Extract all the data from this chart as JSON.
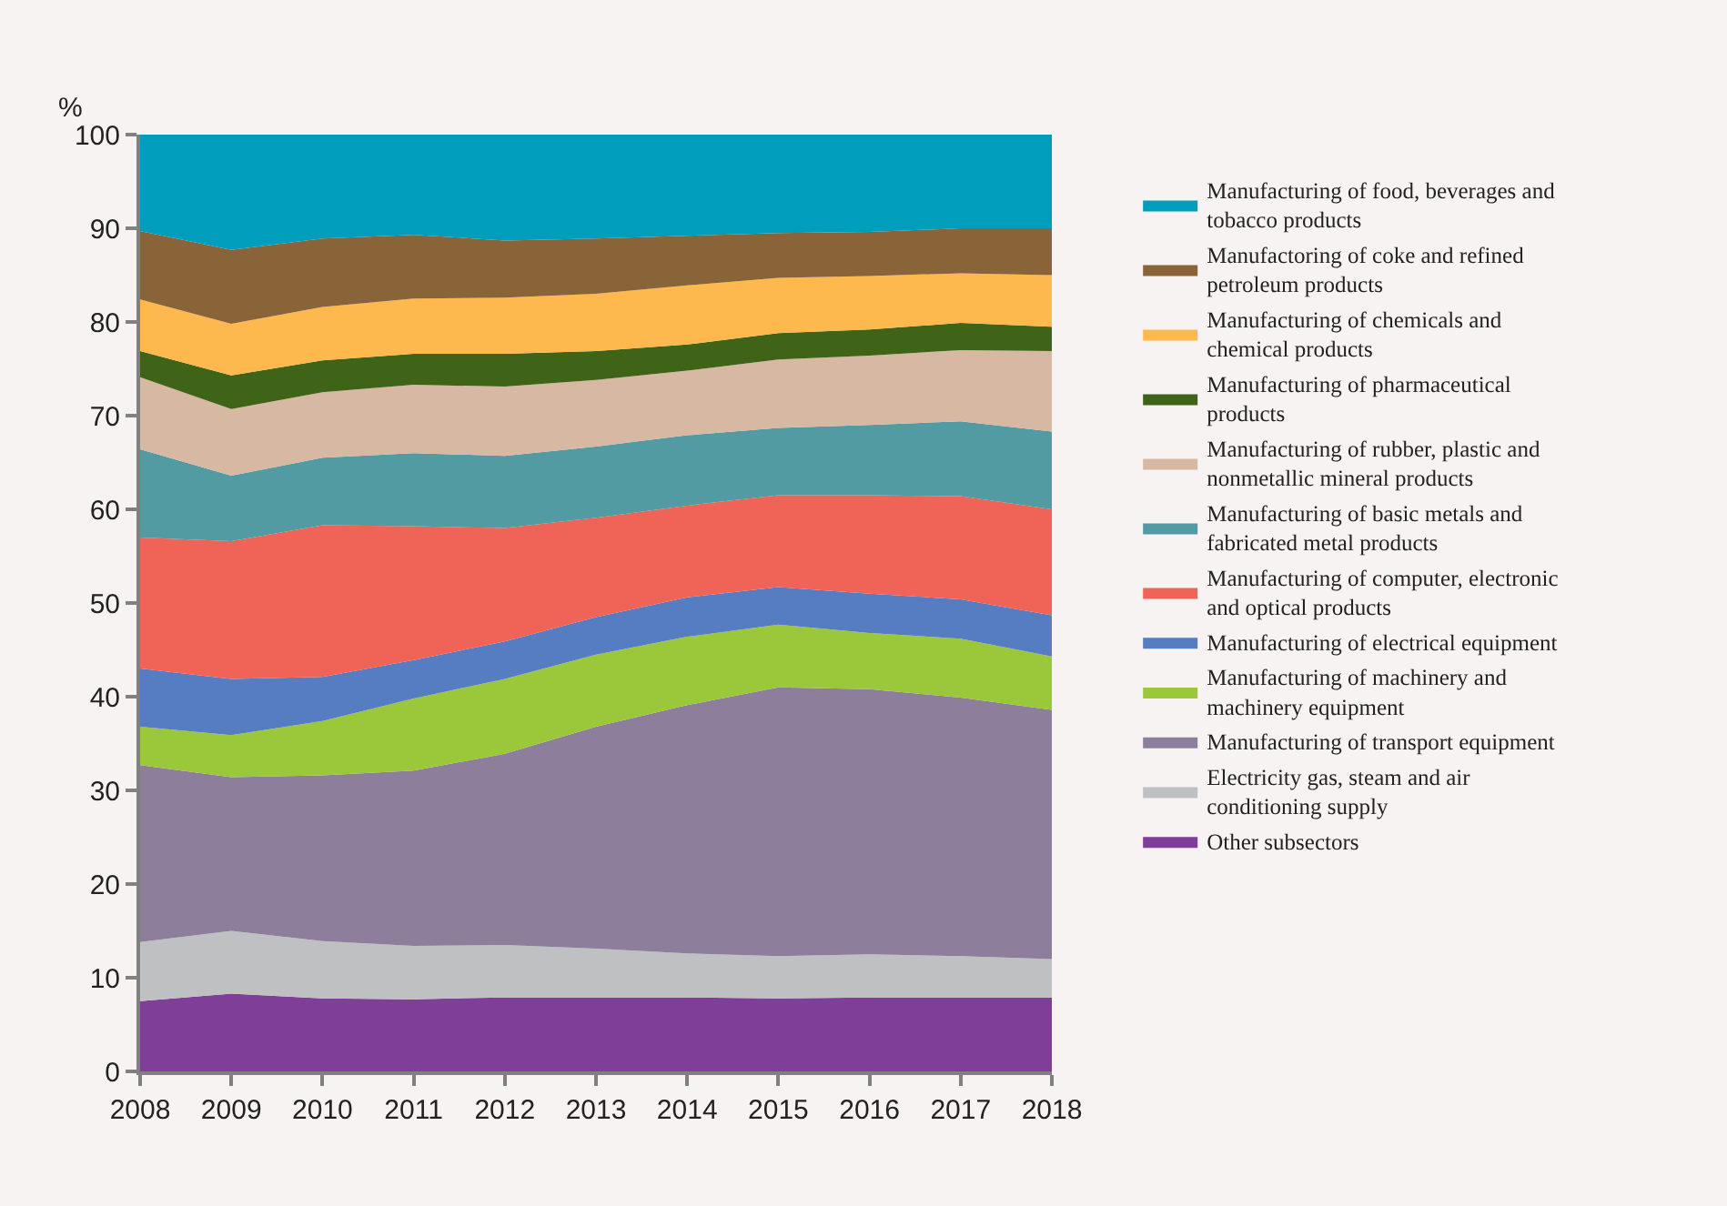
{
  "chart_data": {
    "type": "area",
    "stacked": true,
    "ylabel": "%",
    "legend": "right",
    "x": [
      2008,
      2009,
      2010,
      2011,
      2012,
      2013,
      2014,
      2015,
      2016,
      2017,
      2018
    ],
    "xlim": [
      2008,
      2018
    ],
    "xticks": [
      2008,
      2009,
      2010,
      2011,
      2012,
      2013,
      2014,
      2015,
      2016,
      2017,
      2018
    ],
    "ylim": [
      0,
      100
    ],
    "yticks": [
      0,
      10,
      20,
      30,
      40,
      50,
      60,
      70,
      80,
      90,
      100
    ],
    "series": [
      {
        "name": "Other subsectors",
        "color": "#7f3f98",
        "values": [
          7.5,
          8.3,
          7.8,
          7.7,
          7.9,
          7.9,
          7.9,
          7.8,
          7.9,
          7.9,
          7.9
        ]
      },
      {
        "name": "Electricity gas, steam and air conditioning supply",
        "color": "#bfc0c2",
        "values": [
          6.3,
          6.7,
          6.1,
          5.7,
          5.6,
          5.2,
          4.7,
          4.5,
          4.6,
          4.4,
          4.1
        ]
      },
      {
        "name": "Manufacturing of transport equipment",
        "color": "#8d7f9c",
        "values": [
          18.9,
          16.4,
          17.7,
          18.7,
          20.4,
          23.7,
          26.5,
          28.7,
          28.3,
          27.6,
          26.6
        ]
      },
      {
        "name": "Manufacturing of machinery and machinery equipment",
        "color": "#9bc73b",
        "values": [
          4.1,
          4.5,
          5.8,
          7.7,
          8.0,
          7.7,
          7.3,
          6.7,
          6.0,
          6.3,
          5.7
        ]
      },
      {
        "name": "Manufacturing of electrical equipment",
        "color": "#567dc1",
        "values": [
          6.2,
          6.0,
          4.7,
          4.1,
          4.0,
          4.0,
          4.2,
          4.0,
          4.2,
          4.2,
          4.4
        ]
      },
      {
        "name": "Manufacturing of computer, electronic and optical products",
        "color": "#f06357",
        "values": [
          14.0,
          14.7,
          16.2,
          14.3,
          12.1,
          10.6,
          9.8,
          9.8,
          10.5,
          11.0,
          11.3
        ]
      },
      {
        "name": "Manufacturing of basic metals and fabricated metal products",
        "color": "#529ba2",
        "values": [
          9.4,
          7.0,
          7.2,
          7.8,
          7.7,
          7.6,
          7.5,
          7.2,
          7.5,
          8.0,
          8.3
        ]
      },
      {
        "name": "Manufacturing of rubber, plastic and nonmetallic mineral products",
        "color": "#d6b8a3",
        "values": [
          7.7,
          7.1,
          7.0,
          7.3,
          7.4,
          7.1,
          6.9,
          7.3,
          7.4,
          7.6,
          8.6
        ]
      },
      {
        "name": "Manufacturing of pharmaceutical products",
        "color": "#406417",
        "values": [
          2.8,
          3.6,
          3.4,
          3.3,
          3.5,
          3.1,
          2.8,
          2.8,
          2.8,
          2.9,
          2.6
        ]
      },
      {
        "name": "Manufacturing of chemicals and chemical products",
        "color": "#fdb94d",
        "values": [
          5.5,
          5.5,
          5.7,
          5.9,
          6.0,
          6.1,
          6.3,
          5.9,
          5.7,
          5.3,
          5.5
        ]
      },
      {
        "name": "Manufactoring of coke and refined petroleum products",
        "color": "#8a6439",
        "values": [
          7.3,
          7.9,
          7.3,
          6.8,
          6.1,
          5.9,
          5.3,
          4.8,
          4.7,
          4.8,
          5.0
        ]
      },
      {
        "name": "Manufacturing of food, beverages and tobacco products",
        "color": "#019dbc",
        "values": [
          10.3,
          12.3,
          11.1,
          10.7,
          11.3,
          11.1,
          10.8,
          10.5,
          10.4,
          10.0,
          10.0
        ]
      }
    ]
  }
}
